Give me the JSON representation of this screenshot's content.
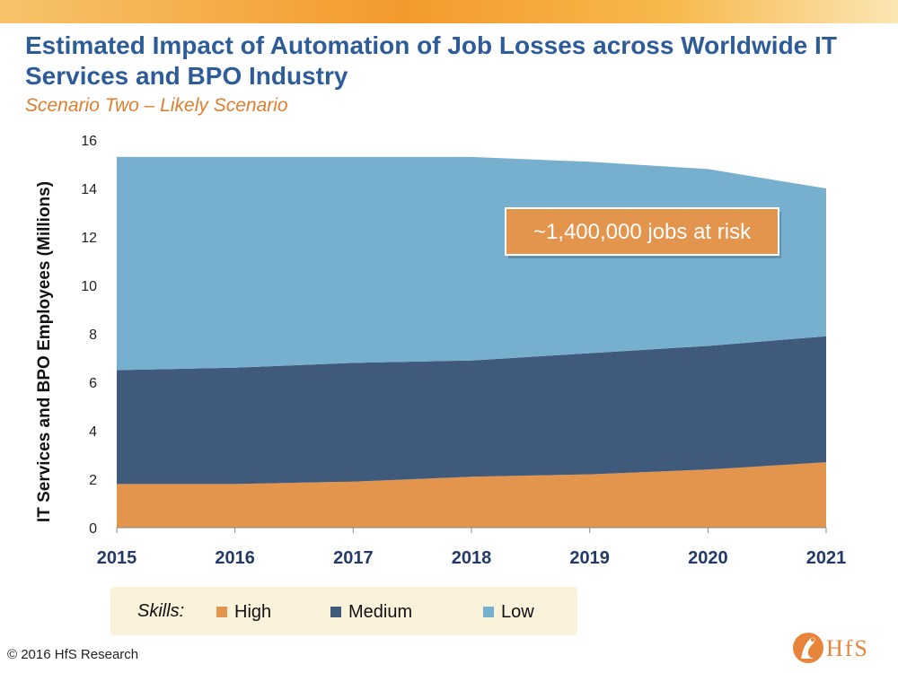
{
  "header": {
    "title": "Estimated Impact of Automation of Job Losses across Worldwide IT Services and BPO Industry",
    "subtitle": "Scenario Two – Likely Scenario"
  },
  "chart_data": {
    "type": "area",
    "stacked": true,
    "title": "Estimated Impact of Automation of Job Losses across Worldwide IT Services and BPO Industry",
    "subtitle": "Scenario Two – Likely Scenario",
    "x": [
      "2015",
      "2016",
      "2017",
      "2018",
      "2019",
      "2020",
      "2021"
    ],
    "ylabel": "IT Services and BPO Employees (Millions)",
    "xlabel": "",
    "ylim": [
      0,
      16
    ],
    "yticks": [
      0,
      2,
      4,
      6,
      8,
      10,
      12,
      14,
      16
    ],
    "grid": false,
    "series": [
      {
        "name": "High",
        "color": "#e3944d",
        "values": [
          1.8,
          1.8,
          1.9,
          2.1,
          2.2,
          2.4,
          2.7
        ]
      },
      {
        "name": "Medium",
        "color": "#3f5a7b",
        "values": [
          4.7,
          4.8,
          4.9,
          4.8,
          5.0,
          5.1,
          5.2
        ]
      },
      {
        "name": "Low",
        "color": "#77b0cf",
        "values": [
          8.8,
          8.7,
          8.5,
          8.4,
          7.9,
          7.3,
          6.1
        ]
      }
    ],
    "annotation": "~1,400,000 jobs at risk",
    "annotation_color": "#e3944d"
  },
  "legend": {
    "title": "Skills:",
    "items": [
      {
        "label": "High",
        "color": "#e3944d"
      },
      {
        "label": "Medium",
        "color": "#3f5a7b"
      },
      {
        "label": "Low",
        "color": "#77b0cf"
      }
    ]
  },
  "footer": {
    "copyright": "© 2016 HfS Research",
    "logo_text": "HfS"
  }
}
